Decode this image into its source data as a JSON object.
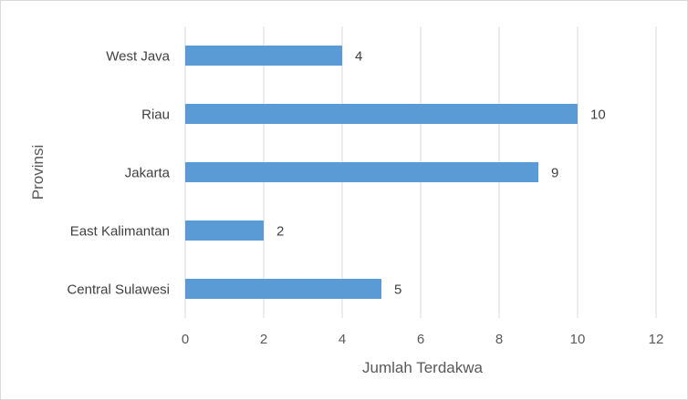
{
  "chart_data": {
    "type": "bar",
    "orientation": "horizontal",
    "categories": [
      "West Java",
      "Riau",
      "Jakarta",
      "East Kalimantan",
      "Central Sulawesi"
    ],
    "values": [
      4,
      10,
      9,
      2,
      5
    ],
    "data_labels": [
      "4",
      "10",
      "9",
      "2",
      "5"
    ],
    "title": "",
    "xlabel": "Jumlah Terdakwa",
    "ylabel": "Provinsi",
    "xlim": [
      0,
      12
    ],
    "xticks": [
      0,
      2,
      4,
      6,
      8,
      10,
      12
    ],
    "xtick_labels": [
      "0",
      "2",
      "4",
      "6",
      "8",
      "10",
      "12"
    ],
    "grid": "vertical",
    "legend": "none",
    "bar_color": "#5b9bd5",
    "gridline_color": "#d9d9d9"
  }
}
